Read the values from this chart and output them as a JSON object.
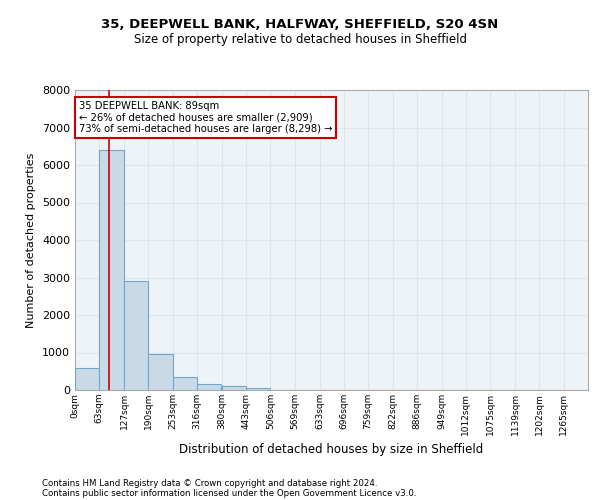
{
  "title_line1": "35, DEEPWELL BANK, HALFWAY, SHEFFIELD, S20 4SN",
  "title_line2": "Size of property relative to detached houses in Sheffield",
  "xlabel": "Distribution of detached houses by size in Sheffield",
  "ylabel": "Number of detached properties",
  "footnote1": "Contains HM Land Registry data © Crown copyright and database right 2024.",
  "footnote2": "Contains public sector information licensed under the Open Government Licence v3.0.",
  "bar_left_edges": [
    0,
    63,
    127,
    190,
    253,
    316,
    380,
    443,
    506,
    569,
    633,
    696,
    759,
    822,
    886,
    949,
    1012,
    1075,
    1139,
    1202
  ],
  "bar_heights": [
    580,
    6390,
    2910,
    960,
    350,
    160,
    100,
    65,
    0,
    0,
    0,
    0,
    0,
    0,
    0,
    0,
    0,
    0,
    0,
    0
  ],
  "bin_width": 63,
  "bar_color": "#c9d9e8",
  "bar_edge_color": "#6fa8c8",
  "grid_color": "#dce6f0",
  "background_color": "#eef3f8",
  "property_size": 89,
  "property_line_color": "#cc0000",
  "annotation_line1": "35 DEEPWELL BANK: 89sqm",
  "annotation_line2": "← 26% of detached houses are smaller (2,909)",
  "annotation_line3": "73% of semi-detached houses are larger (8,298) →",
  "annotation_box_color": "#cc0000",
  "ylim": [
    0,
    8000
  ],
  "yticks": [
    0,
    1000,
    2000,
    3000,
    4000,
    5000,
    6000,
    7000,
    8000
  ],
  "xtick_labels": [
    "0sqm",
    "63sqm",
    "127sqm",
    "190sqm",
    "253sqm",
    "316sqm",
    "380sqm",
    "443sqm",
    "506sqm",
    "569sqm",
    "633sqm",
    "696sqm",
    "759sqm",
    "822sqm",
    "886sqm",
    "949sqm",
    "1012sqm",
    "1075sqm",
    "1139sqm",
    "1202sqm",
    "1265sqm"
  ],
  "xtick_positions": [
    0,
    63,
    127,
    190,
    253,
    316,
    380,
    443,
    506,
    569,
    633,
    696,
    759,
    822,
    886,
    949,
    1012,
    1075,
    1139,
    1202,
    1265
  ],
  "xlim_max": 1328
}
